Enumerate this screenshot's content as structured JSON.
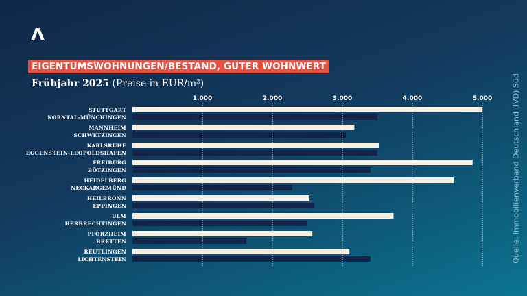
{
  "logo": "Λ",
  "title": "EIGENTUMSWOHNUNGEN/BESTAND, GUTER WOHNWERT",
  "subtitle_bold": "Frühjahr 2025",
  "subtitle_rest": "(Preise in EUR/m²)",
  "source": "Quelle: Immobilienverband Deutschland (IVD) Süd",
  "colors": {
    "city": "#f5f0e6",
    "surrounding": "#13244a",
    "title_bg": "#e9503f"
  },
  "chart_data": {
    "type": "bar",
    "orientation": "horizontal",
    "title": "EIGENTUMSWOHNUNGEN/BESTAND, GUTER WOHNWERT",
    "subtitle": "Frühjahr 2025 (Preise in EUR/m²)",
    "xlim": [
      0,
      5000
    ],
    "ticks": [
      1000,
      2000,
      3000,
      4000,
      5000
    ],
    "tick_labels": [
      "1.000",
      "2.000",
      "3.000",
      "4.000",
      "5.000"
    ],
    "grid": "vertical dotted",
    "groups": [
      {
        "bars": [
          {
            "label": "STUTTGART",
            "value": 5000
          },
          {
            "label": "KORNTAL-MÜNCHINGEN",
            "value": 3500
          }
        ]
      },
      {
        "bars": [
          {
            "label": "MANNHEIM",
            "value": 3170
          },
          {
            "label": "SCHWETZINGEN",
            "value": 3050
          }
        ]
      },
      {
        "bars": [
          {
            "label": "KARLSRUHE",
            "value": 3520
          },
          {
            "label": "EGGENSTEIN-LEOPOLDSHAFEN",
            "value": 3500
          }
        ]
      },
      {
        "bars": [
          {
            "label": "FREIBURG",
            "value": 4860
          },
          {
            "label": "BÖTZINGEN",
            "value": 3400
          }
        ]
      },
      {
        "bars": [
          {
            "label": "HEIDELBERG",
            "value": 4590
          },
          {
            "label": "NECKARGEMÜND",
            "value": 2280
          }
        ]
      },
      {
        "bars": [
          {
            "label": "HEILBRONN",
            "value": 2530
          },
          {
            "label": "EPPINGEN",
            "value": 2600
          }
        ]
      },
      {
        "bars": [
          {
            "label": "ULM",
            "value": 3730
          },
          {
            "label": "HERBRECHTINGEN",
            "value": 2500
          }
        ]
      },
      {
        "bars": [
          {
            "label": "PFORZHEIM",
            "value": 2570
          },
          {
            "label": "BRETTEN",
            "value": 1630
          }
        ]
      },
      {
        "bars": [
          {
            "label": "REUTLINGEN",
            "value": 3100
          },
          {
            "label": "LICHTENSTEIN",
            "value": 3400
          }
        ]
      }
    ]
  }
}
